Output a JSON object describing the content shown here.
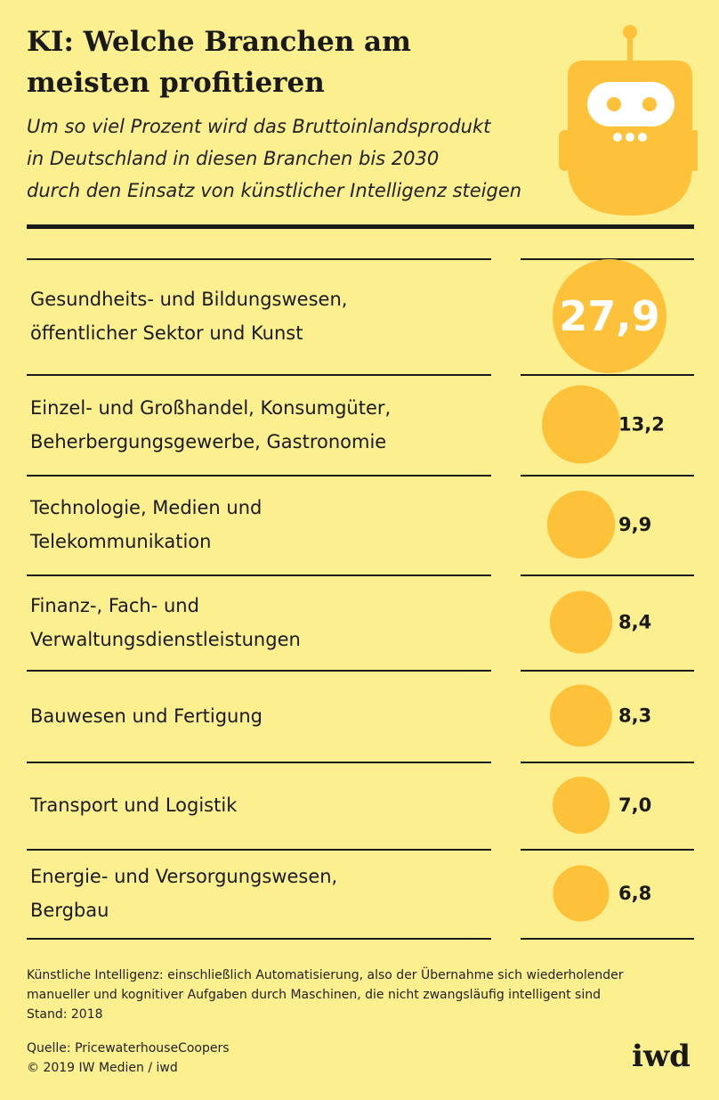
{
  "header": {
    "title_line1": "KI: Welche Branchen am",
    "title_line2": "meisten profitieren",
    "subtitle_line1": "Um so viel Prozent wird das Bruttoinlandsprodukt",
    "subtitle_line2": "in Deutschland in diesen Branchen bis 2030",
    "subtitle_line3": "durch den Einsatz von künstlicher Intelligenz steigen"
  },
  "colors": {
    "background": "#fcef8f",
    "bubble": "#fdc13a",
    "text": "#1a1a1a",
    "bubble_text": "#ffffff"
  },
  "icons": {
    "header": "robot-icon"
  },
  "chart_data": {
    "type": "bubble",
    "unit": "%",
    "rows": [
      {
        "label_lines": [
          "Gesundheits- und Bildungswesen,",
          "öffentlicher Sektor und Kunst"
        ],
        "value": 27.9,
        "value_label": "27,9"
      },
      {
        "label_lines": [
          "Einzel- und Großhandel, Konsumgüter,",
          "Beherbergungsgewerbe, Gastronomie"
        ],
        "value": 13.2,
        "value_label": "13,2"
      },
      {
        "label_lines": [
          "Technologie, Medien und",
          "Telekommunikation"
        ],
        "value": 9.9,
        "value_label": "9,9"
      },
      {
        "label_lines": [
          "Finanz-, Fach- und",
          "Verwaltungsdienstleistungen"
        ],
        "value": 8.4,
        "value_label": "8,4"
      },
      {
        "label_lines": [
          "Bauwesen und Fertigung"
        ],
        "value": 8.3,
        "value_label": "8,3"
      },
      {
        "label_lines": [
          "Transport und Logistik"
        ],
        "value": 7.0,
        "value_label": "7,0"
      },
      {
        "label_lines": [
          "Energie- und Versorgungswesen,",
          "Bergbau"
        ],
        "value": 6.8,
        "value_label": "6,8"
      }
    ]
  },
  "footer": {
    "note_line1": "Künstliche Intelligenz: einschließlich Automatisierung, also der Übernahme sich wiederholender",
    "note_line2": "manueller und kognitiver Aufgaben durch Maschinen, die nicht zwangsläufig intelligent sind",
    "note_line3": "Stand: 2018",
    "source": "Quelle: PricewaterhouseCoopers",
    "copyright": "© 2019 IW Medien / iwd",
    "logo": "iwd"
  }
}
